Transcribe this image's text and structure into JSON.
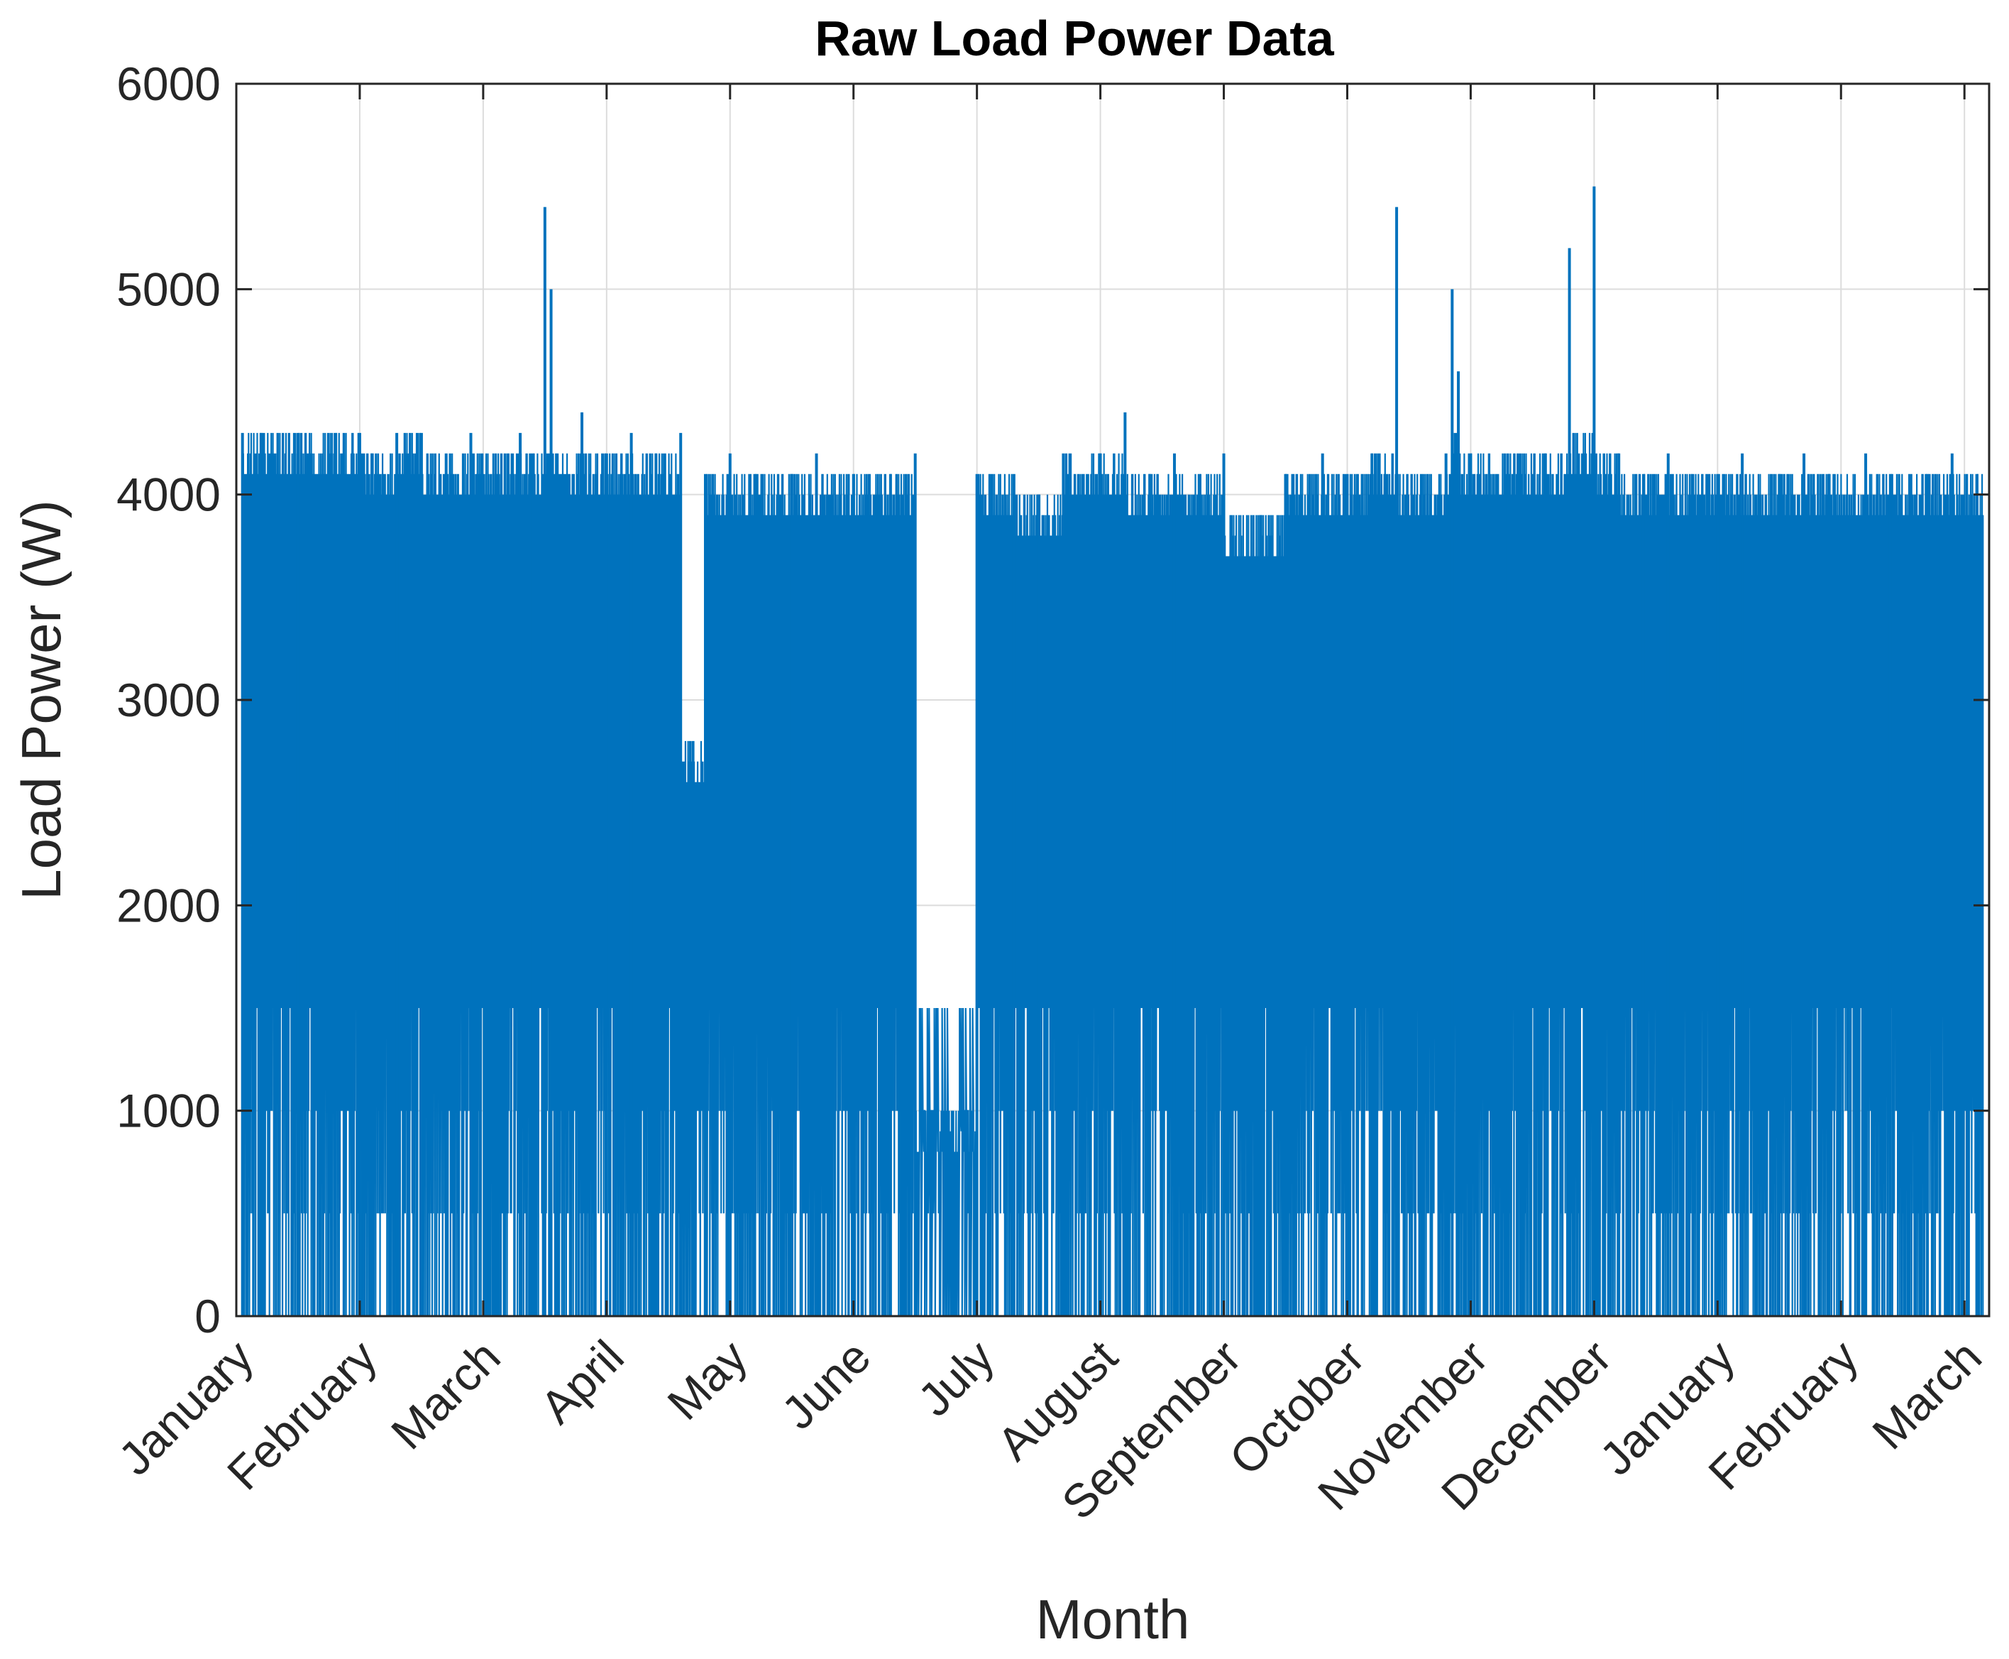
{
  "chart_data": {
    "type": "line",
    "title": "Raw Load Power Data",
    "xlabel": "Month",
    "ylabel": "Load Power (W)",
    "ylim": [
      0,
      6000
    ],
    "yticks": [
      "0",
      "1000",
      "2000",
      "3000",
      "4000",
      "5000",
      "6000"
    ],
    "xtick_labels": [
      "January",
      "February",
      "March",
      "April",
      "May",
      "June",
      "July",
      "August",
      "September",
      "October",
      "November",
      "December",
      "January",
      "February",
      "March"
    ],
    "xlim_months": [
      0,
      14.2
    ],
    "grid": true,
    "line_color": "#0072BD",
    "series": [
      {
        "values": [
          [
            0.05,
            4300
          ],
          [
            0.2,
            4300
          ],
          [
            0.5,
            4300
          ],
          [
            0.8,
            4300
          ],
          [
            1.0,
            4300
          ],
          [
            1.1,
            4200
          ],
          [
            1.3,
            4300
          ],
          [
            1.5,
            4300
          ],
          [
            1.7,
            4200
          ],
          [
            1.9,
            4300
          ],
          [
            2.1,
            4200
          ],
          [
            2.3,
            4300
          ],
          [
            2.4,
            4200
          ],
          [
            2.5,
            5400
          ],
          [
            2.55,
            5000
          ],
          [
            2.6,
            4200
          ],
          [
            2.8,
            4400
          ],
          [
            3.0,
            4200
          ],
          [
            3.2,
            4300
          ],
          [
            3.4,
            4200
          ],
          [
            3.6,
            4300
          ],
          [
            3.7,
            2800
          ],
          [
            3.8,
            4100
          ],
          [
            4.0,
            4200
          ],
          [
            4.2,
            4100
          ],
          [
            4.5,
            4100
          ],
          [
            4.7,
            4200
          ],
          [
            5.0,
            4100
          ],
          [
            5.3,
            4100
          ],
          [
            5.5,
            4200
          ],
          [
            5.8,
            1000
          ],
          [
            6.0,
            4100
          ],
          [
            6.3,
            4100
          ],
          [
            6.5,
            4000
          ],
          [
            6.7,
            4200
          ],
          [
            7.0,
            4200
          ],
          [
            7.2,
            4400
          ],
          [
            7.4,
            4100
          ],
          [
            7.6,
            4200
          ],
          [
            7.8,
            4100
          ],
          [
            8.0,
            4200
          ],
          [
            8.3,
            3900
          ],
          [
            8.5,
            4100
          ],
          [
            8.8,
            4200
          ],
          [
            9.0,
            4100
          ],
          [
            9.2,
            4200
          ],
          [
            9.4,
            5400
          ],
          [
            9.6,
            4100
          ],
          [
            9.8,
            4200
          ],
          [
            9.85,
            5000
          ],
          [
            9.9,
            4600
          ],
          [
            10.0,
            4200
          ],
          [
            10.3,
            4200
          ],
          [
            10.6,
            4200
          ],
          [
            10.8,
            5200
          ],
          [
            11.0,
            5500
          ],
          [
            11.2,
            4200
          ],
          [
            11.4,
            4100
          ],
          [
            11.6,
            4200
          ],
          [
            11.8,
            4100
          ],
          [
            12.0,
            4100
          ],
          [
            12.2,
            4200
          ],
          [
            12.5,
            4100
          ],
          [
            12.7,
            4200
          ],
          [
            12.9,
            4100
          ],
          [
            13.2,
            4200
          ],
          [
            13.4,
            4100
          ],
          [
            13.7,
            4100
          ],
          [
            13.9,
            4200
          ],
          [
            14.1,
            4100
          ]
        ]
      }
    ]
  }
}
